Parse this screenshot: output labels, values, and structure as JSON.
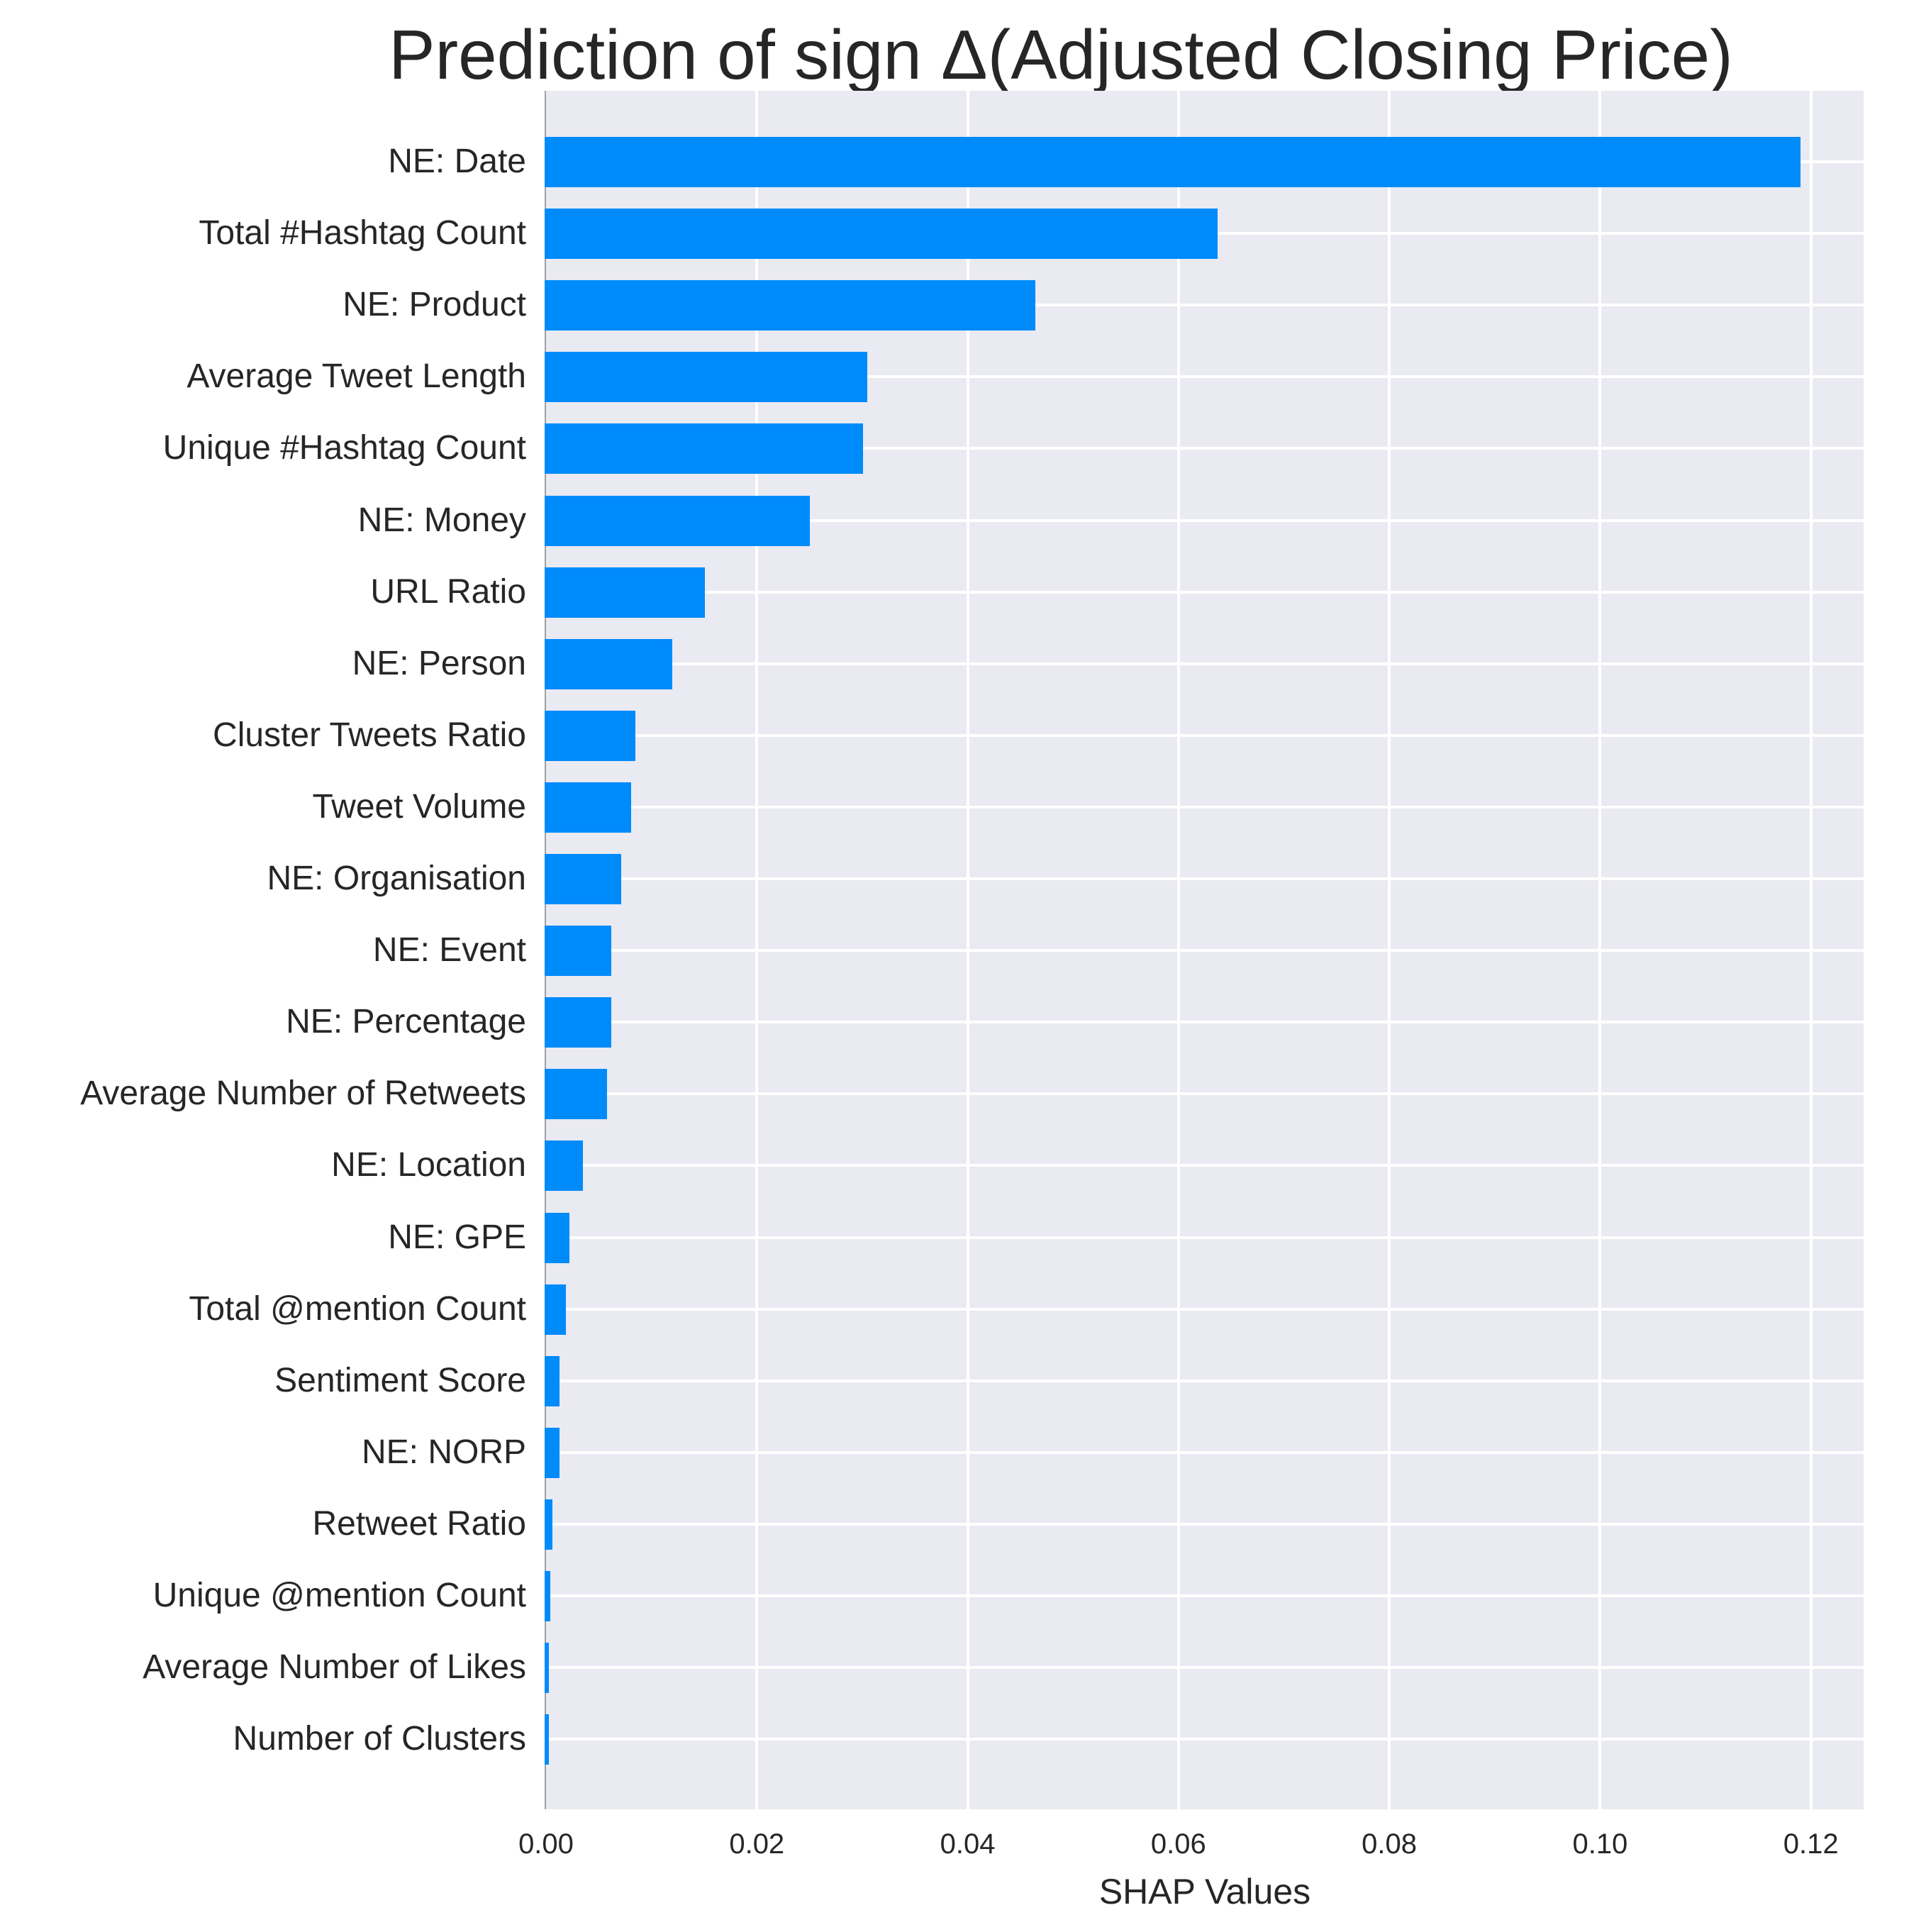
{
  "chart_data": {
    "type": "bar",
    "orientation": "horizontal",
    "title": "Prediction of sign Δ(Adjusted Closing Price)",
    "xlabel": "SHAP Values",
    "ylabel": "",
    "xlim": [
      0,
      0.125
    ],
    "xticks": [
      0.0,
      0.02,
      0.04,
      0.06,
      0.08,
      0.1,
      0.12
    ],
    "xtick_labels": [
      "0.00",
      "0.02",
      "0.04",
      "0.06",
      "0.08",
      "0.10",
      "0.12"
    ],
    "grid": true,
    "legend": null,
    "bar_color": "#008bfb",
    "categories": [
      "NE: Date",
      "Total #Hashtag Count",
      "NE: Product",
      "Average Tweet Length",
      "Unique #Hashtag Count",
      "NE: Money",
      "URL Ratio",
      "NE: Person",
      "Cluster Tweets Ratio",
      "Tweet Volume",
      "NE: Organisation",
      "NE: Event",
      "NE: Percentage",
      "Average Number of Retweets",
      "NE: Location",
      "NE: GPE",
      "Total @mention Count",
      "Sentiment Score",
      "NE: NORP",
      "Retweet Ratio",
      "Unique @mention Count",
      "Average Number of Likes",
      "Number of Clusters"
    ],
    "values": [
      0.119,
      0.0637,
      0.0464,
      0.0305,
      0.0301,
      0.025,
      0.0151,
      0.012,
      0.0085,
      0.0081,
      0.0071,
      0.0062,
      0.0062,
      0.0058,
      0.0035,
      0.0022,
      0.0019,
      0.0013,
      0.0013,
      0.0006,
      0.0004,
      0.0003,
      0.0003
    ]
  },
  "colors": {
    "bar": "#008bfb",
    "plot_background": "#eaeaf2",
    "grid": "#ffffff",
    "text": "#262626"
  }
}
